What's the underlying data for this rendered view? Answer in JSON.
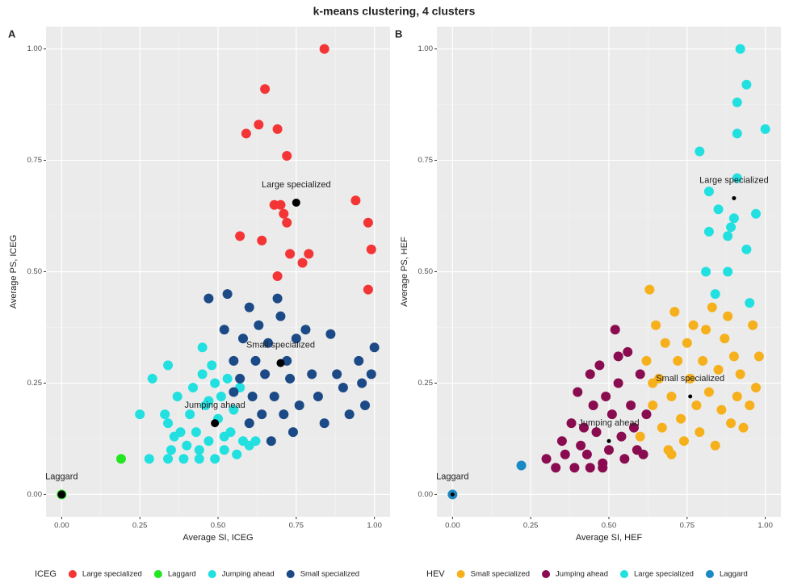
{
  "title": "k-means clustering, 4 clusters",
  "chart_data": [
    {
      "type": "scatter",
      "panel": "A",
      "xlabel": "Average SI, ICEG",
      "ylabel": "Average PS, ICEG",
      "legend_title": "ICEG",
      "xlim": [
        -0.05,
        1.05
      ],
      "ylim": [
        -0.05,
        1.05
      ],
      "xticks": [
        {
          "value": 0,
          "label": "0.00"
        },
        {
          "value": 0.25,
          "label": "0.25"
        },
        {
          "value": 0.5,
          "label": "0.50"
        },
        {
          "value": 0.75,
          "label": "0.75"
        },
        {
          "value": 1,
          "label": "1.00"
        }
      ],
      "yticks": [
        {
          "value": 0,
          "label": "0.00"
        },
        {
          "value": 0.25,
          "label": "0.25"
        },
        {
          "value": 0.5,
          "label": "0.50"
        },
        {
          "value": 0.75,
          "label": "0.75"
        },
        {
          "value": 1,
          "label": "1.00"
        }
      ],
      "series": [
        {
          "name": "Large specialized",
          "color": "#f33535",
          "x": [
            0.84,
            0.65,
            0.63,
            0.69,
            0.59,
            0.72,
            0.94,
            0.68,
            0.7,
            0.71,
            0.72,
            0.98,
            0.57,
            0.64,
            0.99,
            0.73,
            0.79,
            0.77,
            0.69,
            0.98
          ],
          "y": [
            1.0,
            0.91,
            0.83,
            0.82,
            0.81,
            0.76,
            0.66,
            0.65,
            0.65,
            0.63,
            0.61,
            0.61,
            0.58,
            0.57,
            0.55,
            0.54,
            0.54,
            0.52,
            0.49,
            0.46
          ]
        },
        {
          "name": "Laggard",
          "color": "#22e622",
          "x": [
            0.19,
            0.0
          ],
          "y": [
            0.08,
            0.0
          ]
        },
        {
          "name": "Jumping ahead",
          "color": "#22e0e0",
          "x": [
            0.25,
            0.29,
            0.28,
            0.34,
            0.33,
            0.34,
            0.35,
            0.34,
            0.37,
            0.38,
            0.39,
            0.4,
            0.41,
            0.42,
            0.43,
            0.44,
            0.45,
            0.45,
            0.46,
            0.47,
            0.48,
            0.49,
            0.49,
            0.5,
            0.51,
            0.52,
            0.53,
            0.54,
            0.55,
            0.56,
            0.57,
            0.58,
            0.6,
            0.62,
            0.44,
            0.47,
            0.52,
            0.36
          ],
          "y": [
            0.18,
            0.26,
            0.08,
            0.29,
            0.18,
            0.16,
            0.1,
            0.08,
            0.22,
            0.14,
            0.08,
            0.11,
            0.18,
            0.24,
            0.14,
            0.1,
            0.33,
            0.27,
            0.2,
            0.12,
            0.29,
            0.25,
            0.08,
            0.17,
            0.22,
            0.1,
            0.26,
            0.14,
            0.19,
            0.09,
            0.24,
            0.12,
            0.11,
            0.12,
            0.08,
            0.21,
            0.13,
            0.13
          ]
        },
        {
          "name": "Small specialized",
          "color": "#1c4a86",
          "x": [
            0.47,
            0.52,
            0.53,
            0.55,
            0.57,
            0.58,
            0.6,
            0.61,
            0.62,
            0.63,
            0.64,
            0.65,
            0.66,
            0.67,
            0.68,
            0.69,
            0.7,
            0.71,
            0.72,
            0.73,
            0.74,
            0.75,
            0.76,
            0.78,
            0.8,
            0.82,
            0.84,
            0.86,
            0.88,
            0.9,
            0.92,
            0.95,
            0.96,
            0.97,
            1.0,
            0.99,
            0.6,
            0.55
          ],
          "y": [
            0.44,
            0.37,
            0.45,
            0.3,
            0.26,
            0.35,
            0.42,
            0.22,
            0.3,
            0.38,
            0.18,
            0.27,
            0.34,
            0.12,
            0.22,
            0.44,
            0.4,
            0.18,
            0.3,
            0.26,
            0.14,
            0.35,
            0.2,
            0.37,
            0.27,
            0.22,
            0.16,
            0.36,
            0.27,
            0.24,
            0.18,
            0.3,
            0.25,
            0.2,
            0.33,
            0.27,
            0.16,
            0.23
          ]
        }
      ],
      "centers": [
        {
          "label": "Large specialized",
          "x": 0.75,
          "y": 0.655
        },
        {
          "label": "Small specialized",
          "x": 0.7,
          "y": 0.295
        },
        {
          "label": "Jumping ahead",
          "x": 0.49,
          "y": 0.16
        },
        {
          "label": "Laggard",
          "x": 0.0,
          "y": 0.0
        }
      ]
    },
    {
      "type": "scatter",
      "panel": "B",
      "xlabel": "Average SI, HEF",
      "ylabel": "Average PS, HEF",
      "legend_title": "HEV",
      "xlim": [
        -0.05,
        1.05
      ],
      "ylim": [
        -0.05,
        1.05
      ],
      "xticks": [
        {
          "value": 0,
          "label": "0.00"
        },
        {
          "value": 0.25,
          "label": "0.25"
        },
        {
          "value": 0.5,
          "label": "0.50"
        },
        {
          "value": 0.75,
          "label": "0.75"
        },
        {
          "value": 1,
          "label": "1.00"
        }
      ],
      "yticks": [
        {
          "value": 0,
          "label": "0.00"
        },
        {
          "value": 0.25,
          "label": "0.25"
        },
        {
          "value": 0.5,
          "label": "0.50"
        },
        {
          "value": 0.75,
          "label": "0.75"
        },
        {
          "value": 1,
          "label": "1.00"
        }
      ],
      "series": [
        {
          "name": "Small specialized",
          "color": "#f5b01c",
          "x": [
            0.62,
            0.63,
            0.64,
            0.65,
            0.66,
            0.67,
            0.68,
            0.69,
            0.7,
            0.71,
            0.72,
            0.73,
            0.74,
            0.75,
            0.76,
            0.77,
            0.78,
            0.79,
            0.8,
            0.81,
            0.82,
            0.83,
            0.84,
            0.85,
            0.86,
            0.87,
            0.88,
            0.89,
            0.9,
            0.91,
            0.92,
            0.93,
            0.95,
            0.97,
            0.98,
            0.96,
            0.6,
            0.64,
            0.7
          ],
          "y": [
            0.3,
            0.46,
            0.2,
            0.38,
            0.26,
            0.15,
            0.34,
            0.1,
            0.22,
            0.41,
            0.3,
            0.17,
            0.12,
            0.34,
            0.26,
            0.38,
            0.2,
            0.14,
            0.3,
            0.37,
            0.23,
            0.42,
            0.11,
            0.28,
            0.19,
            0.35,
            0.4,
            0.16,
            0.31,
            0.22,
            0.27,
            0.15,
            0.2,
            0.24,
            0.31,
            0.38,
            0.13,
            0.25,
            0.09
          ]
        },
        {
          "name": "Jumping ahead",
          "color": "#8a0c50",
          "x": [
            0.3,
            0.33,
            0.35,
            0.36,
            0.38,
            0.39,
            0.4,
            0.41,
            0.42,
            0.43,
            0.44,
            0.45,
            0.46,
            0.47,
            0.48,
            0.49,
            0.5,
            0.51,
            0.52,
            0.53,
            0.54,
            0.55,
            0.56,
            0.57,
            0.58,
            0.59,
            0.6,
            0.61,
            0.62,
            0.48,
            0.44,
            0.53
          ],
          "y": [
            0.08,
            0.06,
            0.12,
            0.09,
            0.16,
            0.06,
            0.23,
            0.11,
            0.15,
            0.09,
            0.27,
            0.2,
            0.14,
            0.29,
            0.07,
            0.22,
            0.1,
            0.18,
            0.37,
            0.25,
            0.13,
            0.08,
            0.32,
            0.2,
            0.15,
            0.1,
            0.27,
            0.09,
            0.18,
            0.06,
            0.06,
            0.31
          ]
        },
        {
          "name": "Large specialized",
          "color": "#22e0e0",
          "x": [
            0.92,
            0.94,
            0.91,
            1.0,
            0.91,
            0.79,
            0.91,
            0.82,
            0.85,
            0.97,
            0.9,
            0.82,
            0.88,
            0.89,
            0.94,
            0.88,
            0.81,
            0.84,
            0.95
          ],
          "y": [
            1.0,
            0.92,
            0.88,
            0.82,
            0.81,
            0.77,
            0.71,
            0.68,
            0.64,
            0.63,
            0.62,
            0.59,
            0.58,
            0.6,
            0.55,
            0.5,
            0.5,
            0.45,
            0.43
          ]
        },
        {
          "name": "Laggard",
          "color": "#1b8ac4",
          "x": [
            0.22,
            0.0
          ],
          "y": [
            0.065,
            0.0
          ]
        }
      ],
      "centers": [
        {
          "label": "Large specialized",
          "x": 0.9,
          "y": 0.665
        },
        {
          "label": "Small specialized",
          "x": 0.76,
          "y": 0.22
        },
        {
          "label": "Jumping ahead",
          "x": 0.5,
          "y": 0.12
        },
        {
          "label": "Laggard",
          "x": 0.0,
          "y": 0.0
        }
      ]
    }
  ]
}
